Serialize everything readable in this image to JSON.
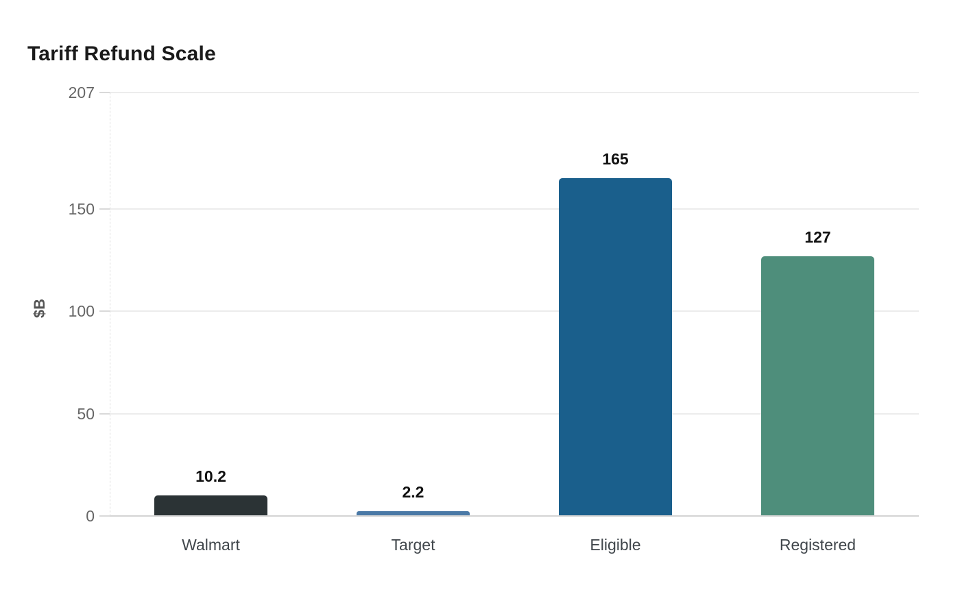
{
  "chart_data": {
    "type": "bar",
    "title": "Tariff Refund Scale",
    "ylabel": "$B",
    "xlabel": "",
    "categories": [
      "Walmart",
      "Target",
      "Eligible",
      "Registered"
    ],
    "values": [
      10.2,
      2.2,
      165,
      127
    ],
    "value_labels": [
      "10.2",
      "2.2",
      "165",
      "127"
    ],
    "bar_colors": [
      "#2b3335",
      "#4a79a6",
      "#1a5f8c",
      "#4e8e7b"
    ],
    "ylim": [
      0,
      207
    ],
    "yticks": [
      0,
      50,
      100,
      150,
      207
    ],
    "grid": "horizontal-only",
    "legend": "none",
    "background_color": "#ffffff",
    "title_color": "#1a1a1a",
    "tick_label_color": "#666666",
    "category_label_color": "#40464b",
    "value_label_color": "#111111",
    "gridline_color": "#ececec",
    "axis_line_color": "#d4d4d4"
  }
}
